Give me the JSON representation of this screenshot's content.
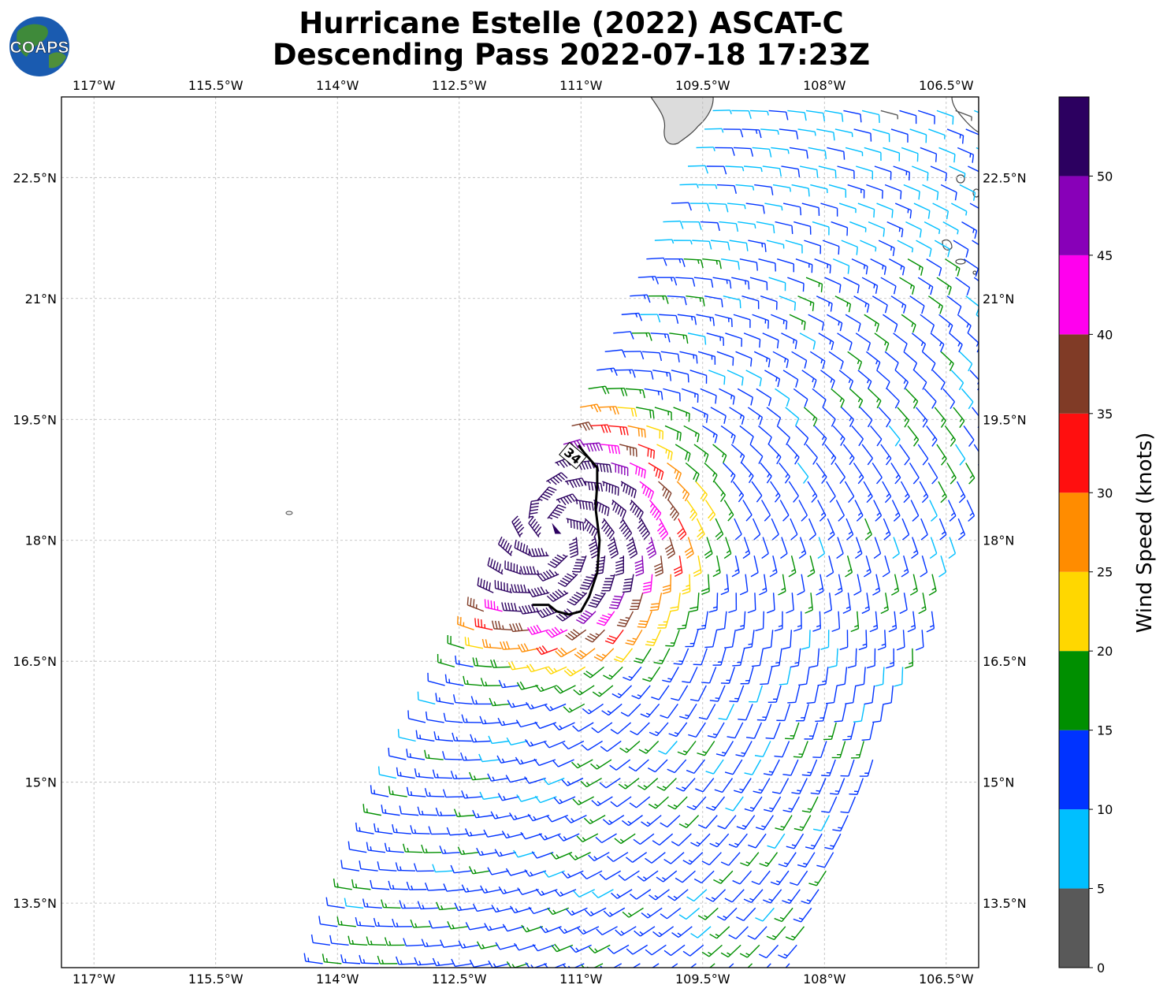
{
  "title": {
    "line1": "Hurricane Estelle (2022) ASCAT-C",
    "line2": "Descending Pass 2022-07-18 17:23Z"
  },
  "logo": {
    "text": "COAPS",
    "icon": "globe-icon"
  },
  "map": {
    "lon_range": [
      -117.4,
      -106.1
    ],
    "lat_range": [
      12.7,
      23.5
    ],
    "lon_ticks": [
      {
        "v": -117.0,
        "label": "117°W"
      },
      {
        "v": -115.5,
        "label": "115.5°W"
      },
      {
        "v": -114.0,
        "label": "114°W"
      },
      {
        "v": -112.5,
        "label": "112.5°W"
      },
      {
        "v": -111.0,
        "label": "111°W"
      },
      {
        "v": -109.5,
        "label": "109.5°W"
      },
      {
        "v": -108.0,
        "label": "108°W"
      },
      {
        "v": -106.5,
        "label": "106.5°W"
      }
    ],
    "lat_ticks": [
      {
        "v": 22.5,
        "label": "22.5°N"
      },
      {
        "v": 21.0,
        "label": "21°N"
      },
      {
        "v": 19.5,
        "label": "19.5°N"
      },
      {
        "v": 18.0,
        "label": "18°N"
      },
      {
        "v": 16.5,
        "label": "16.5°N"
      },
      {
        "v": 15.0,
        "label": "15°N"
      },
      {
        "v": 13.5,
        "label": "13.5°N"
      }
    ],
    "grid": true,
    "storm_center": {
      "lon": -111.3,
      "lat": 18.1
    },
    "contour_34kt": {
      "label": "34",
      "points": [
        [
          -111.03,
          19.18
        ],
        [
          -110.97,
          19.1
        ],
        [
          -110.8,
          18.9
        ],
        [
          -110.8,
          18.7
        ],
        [
          -110.82,
          18.4
        ],
        [
          -110.77,
          18.0
        ],
        [
          -110.8,
          17.6
        ],
        [
          -110.9,
          17.3
        ],
        [
          -111.0,
          17.12
        ],
        [
          -111.15,
          17.08
        ],
        [
          -111.3,
          17.12
        ],
        [
          -111.4,
          17.2
        ],
        [
          -111.6,
          17.2
        ]
      ]
    }
  },
  "colorbar": {
    "label": "Wind Speed (knots)",
    "ticks": [
      0,
      5,
      10,
      15,
      20,
      25,
      30,
      35,
      40,
      45,
      50
    ],
    "max": 55,
    "colors": [
      "#595959",
      "#00bfff",
      "#0033ff",
      "#008f00",
      "#ffd700",
      "#ff8c00",
      "#ff0f0f",
      "#803b26",
      "#ff00ee",
      "#8800b8",
      "#2c0060"
    ]
  },
  "chart_data": {
    "type": "wind-barbs",
    "title": "Hurricane Estelle (2022) ASCAT-C",
    "subtitle": "Descending Pass 2022-07-18 17:23Z",
    "xlabel": "",
    "ylabel": "",
    "colorbar_label": "Wind Speed (knots)",
    "xlim": [
      -117.4,
      -106.1
    ],
    "ylim": [
      12.7,
      23.5
    ],
    "speed_bins_kt": [
      0,
      5,
      10,
      15,
      20,
      25,
      30,
      35,
      40,
      45,
      50,
      55
    ],
    "center_of_circulation": {
      "lon": -111.3,
      "lat": 18.1
    },
    "swath": {
      "descending": true,
      "edges_lon_at_lat": [
        {
          "lat": 23.5,
          "west": -109.3,
          "east": -106.1
        },
        {
          "lat": 19.0,
          "west": -111.3,
          "east": -106.1
        },
        {
          "lat": 17.5,
          "west": -112.0,
          "east": -106.5
        },
        {
          "lat": 15.0,
          "west": -113.3,
          "east": -107.5
        },
        {
          "lat": 12.7,
          "west": -114.2,
          "east": -108.3
        }
      ]
    }
  }
}
